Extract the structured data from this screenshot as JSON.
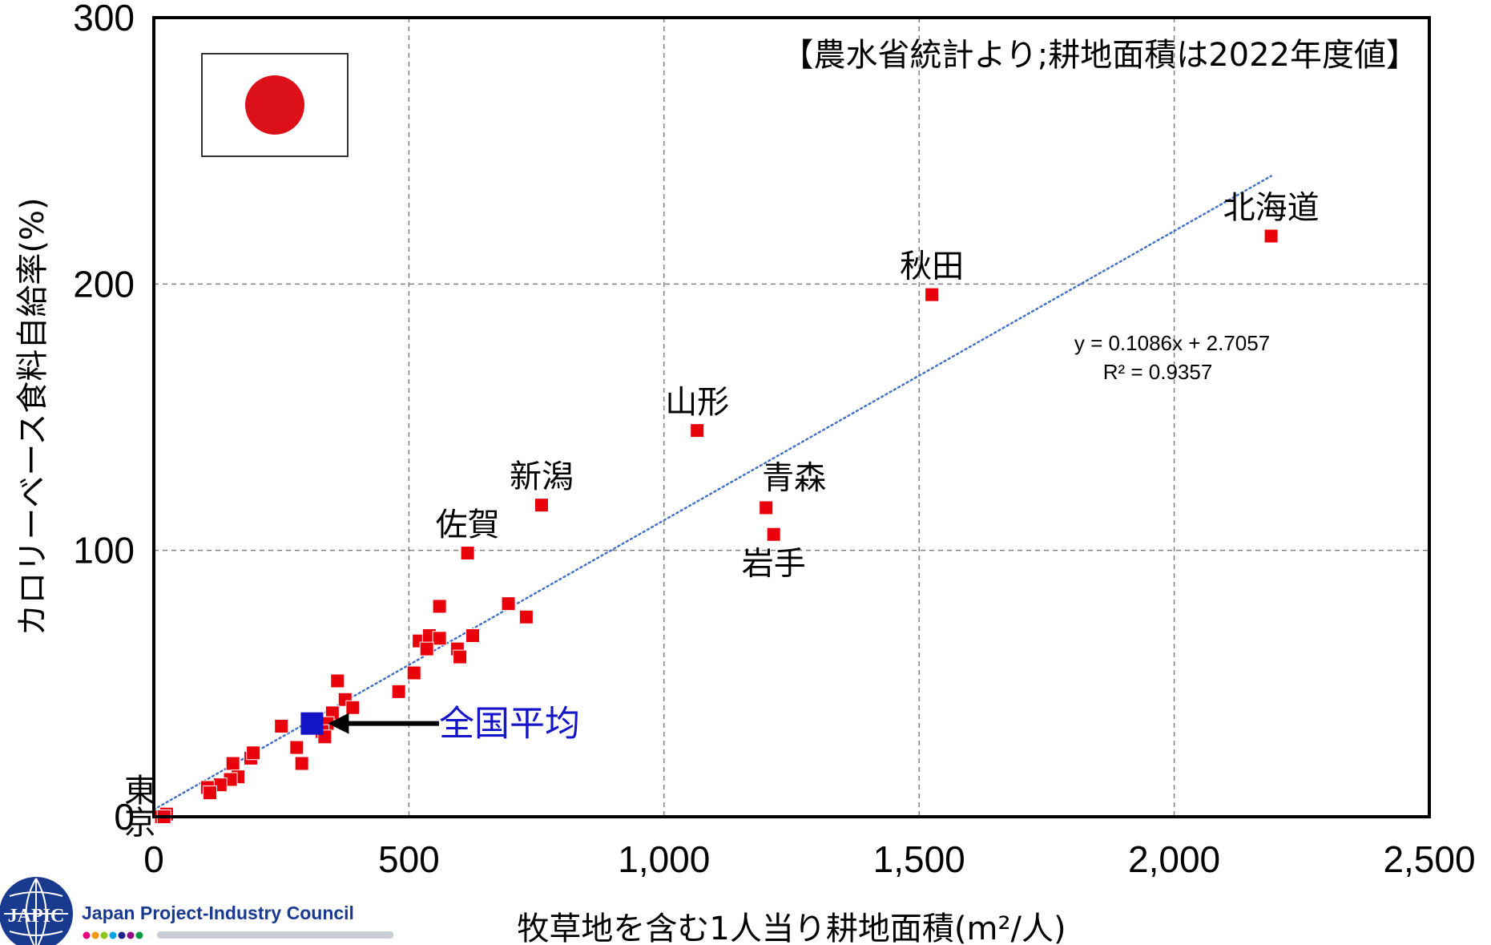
{
  "colors": {
    "points": "#e8000a",
    "national_average": "#1414c8",
    "trendline": "#4472c4",
    "flag_circle": "#dc1018",
    "frame": "#000000",
    "grid": "#808080",
    "logo_blue": "#1a3a8f"
  },
  "logo": {
    "mark": "JAPIC",
    "name": "Japan Project-Industry Council"
  },
  "flag_icon": "japan-flag-icon",
  "chart_data": {
    "type": "scatter",
    "title": "【農水省統計より;耕地面積は2022年度値】",
    "xlabel": "牧草地を含む1人当り耕地面積(m²/人)",
    "ylabel": "カロリーベース食料自給率(%)",
    "xlim": [
      0,
      2500
    ],
    "ylim": [
      0,
      300
    ],
    "x_ticks": [
      0,
      500,
      1000,
      1500,
      2000,
      2500
    ],
    "x_tick_labels": [
      "0",
      "500",
      "1,000",
      "1,500",
      "2,000",
      "2,500"
    ],
    "y_ticks": [
      0,
      100,
      200,
      300
    ],
    "y_tick_labels": [
      "0",
      "100",
      "200",
      "300"
    ],
    "grid": true,
    "labeled_points": [
      {
        "name": "北海道",
        "x": 2190,
        "y": 218
      },
      {
        "name": "秋田",
        "x": 1525,
        "y": 196
      },
      {
        "name": "山形",
        "x": 1065,
        "y": 145
      },
      {
        "name": "青森",
        "x": 1200,
        "y": 116
      },
      {
        "name": "岩手",
        "x": 1215,
        "y": 106
      },
      {
        "name": "新潟",
        "x": 760,
        "y": 117
      },
      {
        "name": "佐賀",
        "x": 615,
        "y": 99
      },
      {
        "name": "東京",
        "x": 20,
        "y": 0
      }
    ],
    "other_points": [
      {
        "x": 560,
        "y": 79
      },
      {
        "x": 695,
        "y": 80
      },
      {
        "x": 730,
        "y": 75
      },
      {
        "x": 520,
        "y": 66
      },
      {
        "x": 540,
        "y": 68
      },
      {
        "x": 560,
        "y": 67
      },
      {
        "x": 625,
        "y": 68
      },
      {
        "x": 535,
        "y": 63
      },
      {
        "x": 595,
        "y": 63
      },
      {
        "x": 600,
        "y": 60
      },
      {
        "x": 510,
        "y": 54
      },
      {
        "x": 480,
        "y": 47
      },
      {
        "x": 360,
        "y": 51
      },
      {
        "x": 375,
        "y": 44
      },
      {
        "x": 390,
        "y": 41
      },
      {
        "x": 350,
        "y": 39
      },
      {
        "x": 340,
        "y": 35
      },
      {
        "x": 330,
        "y": 32
      },
      {
        "x": 335,
        "y": 30
      },
      {
        "x": 250,
        "y": 34
      },
      {
        "x": 280,
        "y": 26
      },
      {
        "x": 290,
        "y": 20
      },
      {
        "x": 190,
        "y": 22
      },
      {
        "x": 195,
        "y": 24
      },
      {
        "x": 155,
        "y": 20
      },
      {
        "x": 165,
        "y": 15
      },
      {
        "x": 150,
        "y": 14
      },
      {
        "x": 130,
        "y": 12
      },
      {
        "x": 105,
        "y": 11
      },
      {
        "x": 110,
        "y": 9
      },
      {
        "x": 25,
        "y": 1
      },
      {
        "x": 15,
        "y": 0
      }
    ],
    "national_average": {
      "name": "全国平均",
      "x": 310,
      "y": 35
    },
    "trendline": {
      "equation": "y = 0.1086x + 2.7057",
      "r_squared": "R² = 0.9357",
      "slope": 0.1086,
      "intercept": 2.7057,
      "x_range": [
        0,
        2190
      ]
    }
  }
}
